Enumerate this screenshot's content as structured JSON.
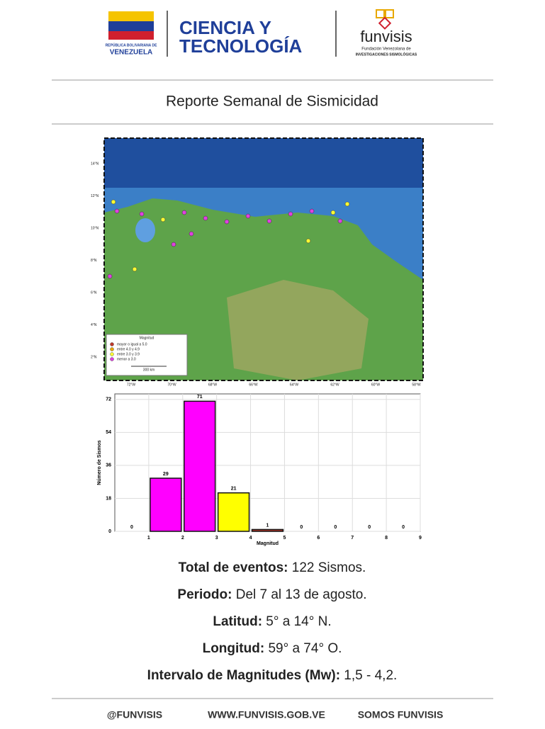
{
  "header": {
    "republic": "REPÚBLICA BOLIVARIANA DE",
    "country": "VENEZUELA",
    "ministry_line1": "CIENCIA Y",
    "ministry_line2": "TECNOLOGÍA",
    "org": "funvisis",
    "org_sub1": "Fundación Venezolana de",
    "org_sub2": "INVESTIGACIONES SISMOLÓGICAS"
  },
  "title": "Reporte Semanal de Sismicidad",
  "map": {
    "lat_labels": [
      "14°N",
      "12°N",
      "10°N",
      "8°N",
      "6°N",
      "4°N",
      "2°N"
    ],
    "lon_labels": [
      "72°W",
      "70°W",
      "68°W",
      "66°W",
      "64°W",
      "62°W",
      "60°W",
      "58°W"
    ],
    "legend": {
      "title": "Magnitud",
      "items": [
        "mayor o igual a 5.0",
        "entre 4.0 y 4.9",
        "entre 3.0 y 3.9",
        "menor a 3.0"
      ],
      "scale": "300 km"
    }
  },
  "chart_data": {
    "type": "histogram",
    "x_label": "Magnitud",
    "y_label": "Número de Sismos",
    "bins": [
      0,
      1,
      2,
      3,
      4,
      5,
      6,
      7,
      8,
      9
    ],
    "values": [
      0,
      29,
      71,
      21,
      1,
      0,
      0,
      0,
      0
    ],
    "colors": [
      "#ff00ff",
      "#ff00ff",
      "#ff00ff",
      "#ffff00",
      "#c0392b",
      "#ff00ff",
      "#ff00ff",
      "#ff00ff",
      "#ff00ff"
    ],
    "xlim": [
      0,
      9
    ],
    "ylim": [
      0,
      75
    ],
    "xticks": [
      1,
      2,
      3,
      4,
      5,
      6,
      7,
      8,
      9
    ],
    "yticks": [
      0,
      18,
      36,
      54,
      72
    ],
    "grid": true
  },
  "stats": [
    {
      "label": "Total de eventos:",
      "value": " 122 Sismos."
    },
    {
      "label": "Periodo:",
      "value": " Del 7 al 13 de agosto."
    },
    {
      "label": "Latitud:",
      "value": " 5° a 14° N."
    },
    {
      "label": "Longitud:",
      "value": " 59° a 74° O."
    },
    {
      "label": "Intervalo de Magnitudes (Mw):",
      "value": " 1,5 - 4,2."
    }
  ],
  "footer": [
    "@FUNVISIS",
    "WWW.FUNVISIS.GOB.VE",
    "SOMOS FUNVISIS"
  ]
}
